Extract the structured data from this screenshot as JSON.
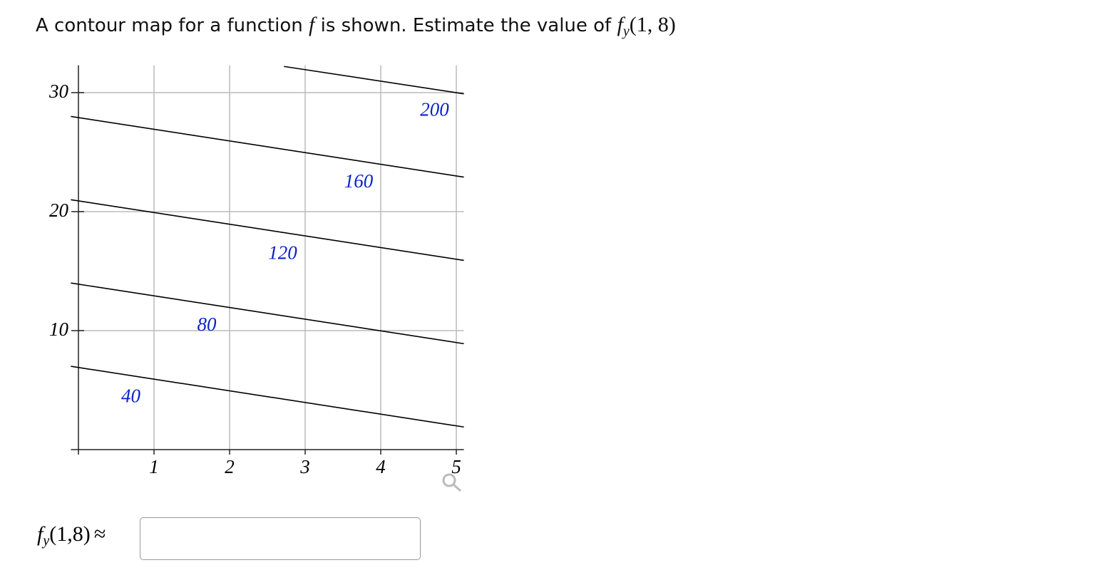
{
  "question": {
    "prefix": "A contour map for a function",
    "fn": "f",
    "middle": "is shown. Estimate the value of",
    "deriv_fn": "f",
    "deriv_sub": "y",
    "deriv_args": "(1, 8)"
  },
  "chart_data": {
    "type": "contour",
    "xlim": [
      -0.1,
      5.1
    ],
    "ylim": [
      0,
      32.3
    ],
    "xticks": [
      1,
      2,
      3,
      4,
      5
    ],
    "yticks": [
      10,
      20,
      30
    ],
    "grid": true,
    "series": [
      {
        "name": "40",
        "color": "#0a22c8",
        "x": [
          -0.1,
          5.1
        ],
        "values": [
          7.0,
          1.9
        ]
      },
      {
        "name": "80",
        "color": "#0a22c8",
        "x": [
          -0.1,
          5.1
        ],
        "values": [
          14.0,
          8.9
        ]
      },
      {
        "name": "120",
        "color": "#0a22c8",
        "x": [
          -0.1,
          5.1
        ],
        "values": [
          21.0,
          15.9
        ]
      },
      {
        "name": "160",
        "color": "#0a22c8",
        "x": [
          -0.1,
          5.1
        ],
        "values": [
          28.0,
          22.9
        ]
      },
      {
        "name": "200",
        "color": "#0a22c8",
        "x": [
          2.72,
          5.1
        ],
        "values": [
          32.2,
          29.9
        ]
      }
    ]
  },
  "answer": {
    "fn": "f",
    "sub": "y",
    "args": "(1,8)",
    "approx": "≈"
  }
}
